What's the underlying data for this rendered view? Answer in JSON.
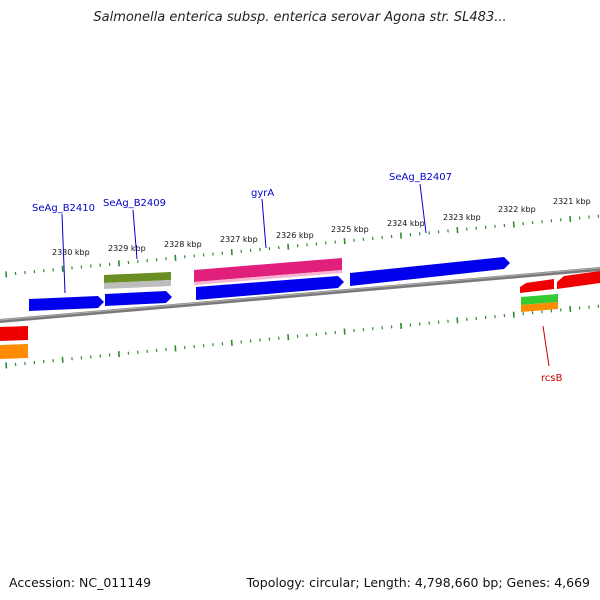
{
  "title": "Salmonella enterica subsp. enterica serovar Agona str. SL483...",
  "footer": {
    "accession": "Accession: NC_011149",
    "stats": "Topology: circular; Length: 4,798,660 bp; Genes: 4,669"
  },
  "ticks": [
    {
      "label": "2330 kbp",
      "kbp": 2330
    },
    {
      "label": "2329 kbp",
      "kbp": 2329
    },
    {
      "label": "2328 kbp",
      "kbp": 2328
    },
    {
      "label": "2327 kbp",
      "kbp": 2327
    },
    {
      "label": "2326 kbp",
      "kbp": 2326
    },
    {
      "label": "2325 kbp",
      "kbp": 2325
    },
    {
      "label": "2324 kbp",
      "kbp": 2324
    },
    {
      "label": "2323 kbp",
      "kbp": 2323
    },
    {
      "label": "2322 kbp",
      "kbp": 2322
    },
    {
      "label": "2321 kbp",
      "kbp": 2321
    }
  ],
  "gene_labels": [
    {
      "text": "SeAg_B2410",
      "color": "#0000cc"
    },
    {
      "text": "SeAg_B2409",
      "color": "#0000cc"
    },
    {
      "text": "gyrA",
      "color": "#0000cc"
    },
    {
      "text": "SeAg_B2407",
      "color": "#0000cc"
    },
    {
      "text": "rcsB",
      "color": "#cc0000"
    }
  ],
  "colors": {
    "backbone": "#808080",
    "tick": "#2e8b2e",
    "cds_blue": "#0000ee",
    "cds_pink": "#e0207a",
    "cds_olive": "#6b8e23",
    "cds_grey": "#bdbdbd",
    "cds_red": "#ee0000",
    "cds_green": "#33cc33",
    "cds_orange": "#ff8c00"
  }
}
